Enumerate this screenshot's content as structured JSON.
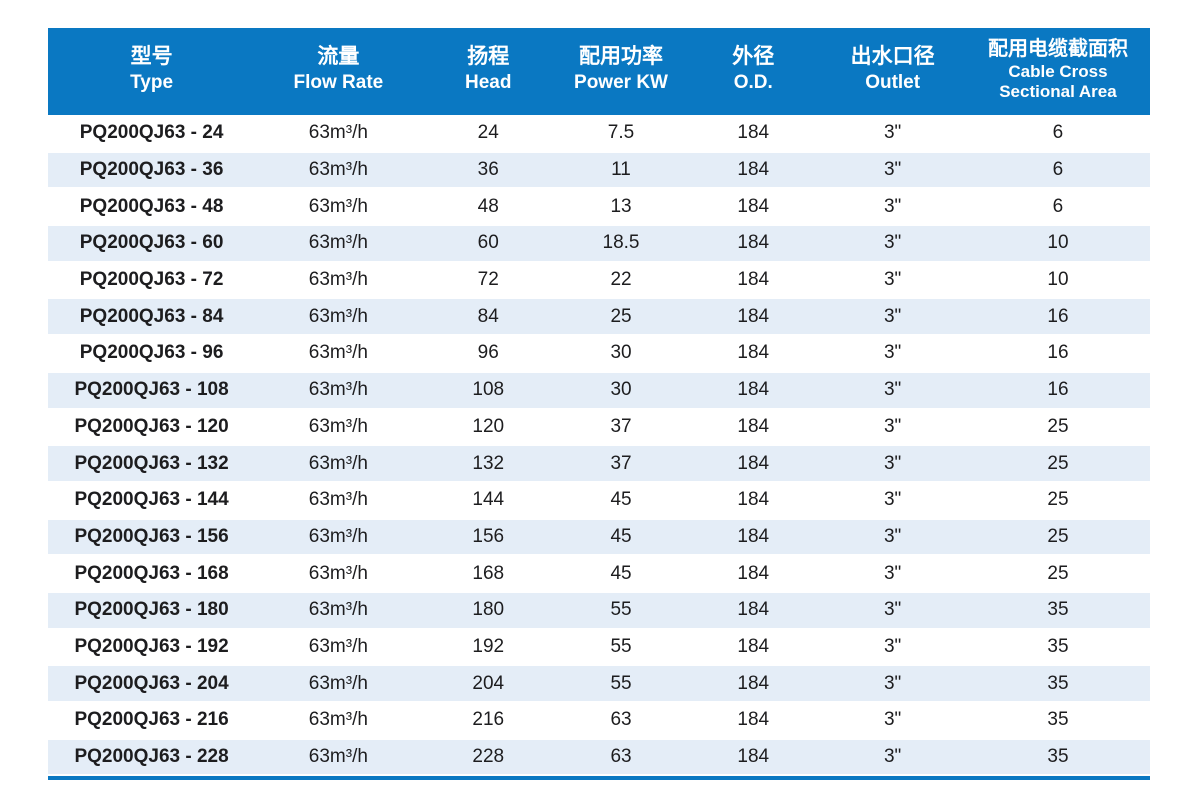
{
  "colors": {
    "header_bg": "#0a78c2",
    "row_alt_bg": "#e4edf7",
    "bottom_border": "#0a78c2",
    "header_text": "#ffffff",
    "body_text": "#1d1d1f"
  },
  "table": {
    "columns": [
      {
        "key": "type",
        "zh": "型号",
        "en_lines": [
          "Type"
        ]
      },
      {
        "key": "flow-rate",
        "zh": "流量",
        "en_lines": [
          "Flow Rate"
        ]
      },
      {
        "key": "head",
        "zh": "扬程",
        "en_lines": [
          "Head"
        ]
      },
      {
        "key": "power-kw",
        "zh": "配用功率",
        "en_lines": [
          "Power KW"
        ]
      },
      {
        "key": "od",
        "zh": "外径",
        "en_lines": [
          "O.D."
        ]
      },
      {
        "key": "outlet",
        "zh": "出水口径",
        "en_lines": [
          "Outlet"
        ]
      },
      {
        "key": "cable-cross-sectional-area",
        "zh": "配用电缆截面积",
        "en_lines": [
          "Cable Cross",
          "Sectional Area"
        ]
      }
    ],
    "rows": [
      [
        "PQ200QJ63 - 24",
        "63m³/h",
        "24",
        "7.5",
        "184",
        "3\"",
        "6"
      ],
      [
        "PQ200QJ63 - 36",
        "63m³/h",
        "36",
        "11",
        "184",
        "3\"",
        "6"
      ],
      [
        "PQ200QJ63 - 48",
        "63m³/h",
        "48",
        "13",
        "184",
        "3\"",
        "6"
      ],
      [
        "PQ200QJ63 - 60",
        "63m³/h",
        "60",
        "18.5",
        "184",
        "3\"",
        "10"
      ],
      [
        "PQ200QJ63 - 72",
        "63m³/h",
        "72",
        "22",
        "184",
        "3\"",
        "10"
      ],
      [
        "PQ200QJ63 - 84",
        "63m³/h",
        "84",
        "25",
        "184",
        "3\"",
        "16"
      ],
      [
        "PQ200QJ63 - 96",
        "63m³/h",
        "96",
        "30",
        "184",
        "3\"",
        "16"
      ],
      [
        "PQ200QJ63 - 108",
        "63m³/h",
        "108",
        "30",
        "184",
        "3\"",
        "16"
      ],
      [
        "PQ200QJ63 - 120",
        "63m³/h",
        "120",
        "37",
        "184",
        "3\"",
        "25"
      ],
      [
        "PQ200QJ63 - 132",
        "63m³/h",
        "132",
        "37",
        "184",
        "3\"",
        "25"
      ],
      [
        "PQ200QJ63 - 144",
        "63m³/h",
        "144",
        "45",
        "184",
        "3\"",
        "25"
      ],
      [
        "PQ200QJ63 - 156",
        "63m³/h",
        "156",
        "45",
        "184",
        "3\"",
        "25"
      ],
      [
        "PQ200QJ63 - 168",
        "63m³/h",
        "168",
        "45",
        "184",
        "3\"",
        "25"
      ],
      [
        "PQ200QJ63 - 180",
        "63m³/h",
        "180",
        "55",
        "184",
        "3\"",
        "35"
      ],
      [
        "PQ200QJ63 - 192",
        "63m³/h",
        "192",
        "55",
        "184",
        "3\"",
        "35"
      ],
      [
        "PQ200QJ63 - 204",
        "63m³/h",
        "204",
        "55",
        "184",
        "3\"",
        "35"
      ],
      [
        "PQ200QJ63 - 216",
        "63m³/h",
        "216",
        "63",
        "184",
        "3\"",
        "35"
      ],
      [
        "PQ200QJ63 - 228",
        "63m³/h",
        "228",
        "63",
        "184",
        "3\"",
        "35"
      ]
    ]
  }
}
